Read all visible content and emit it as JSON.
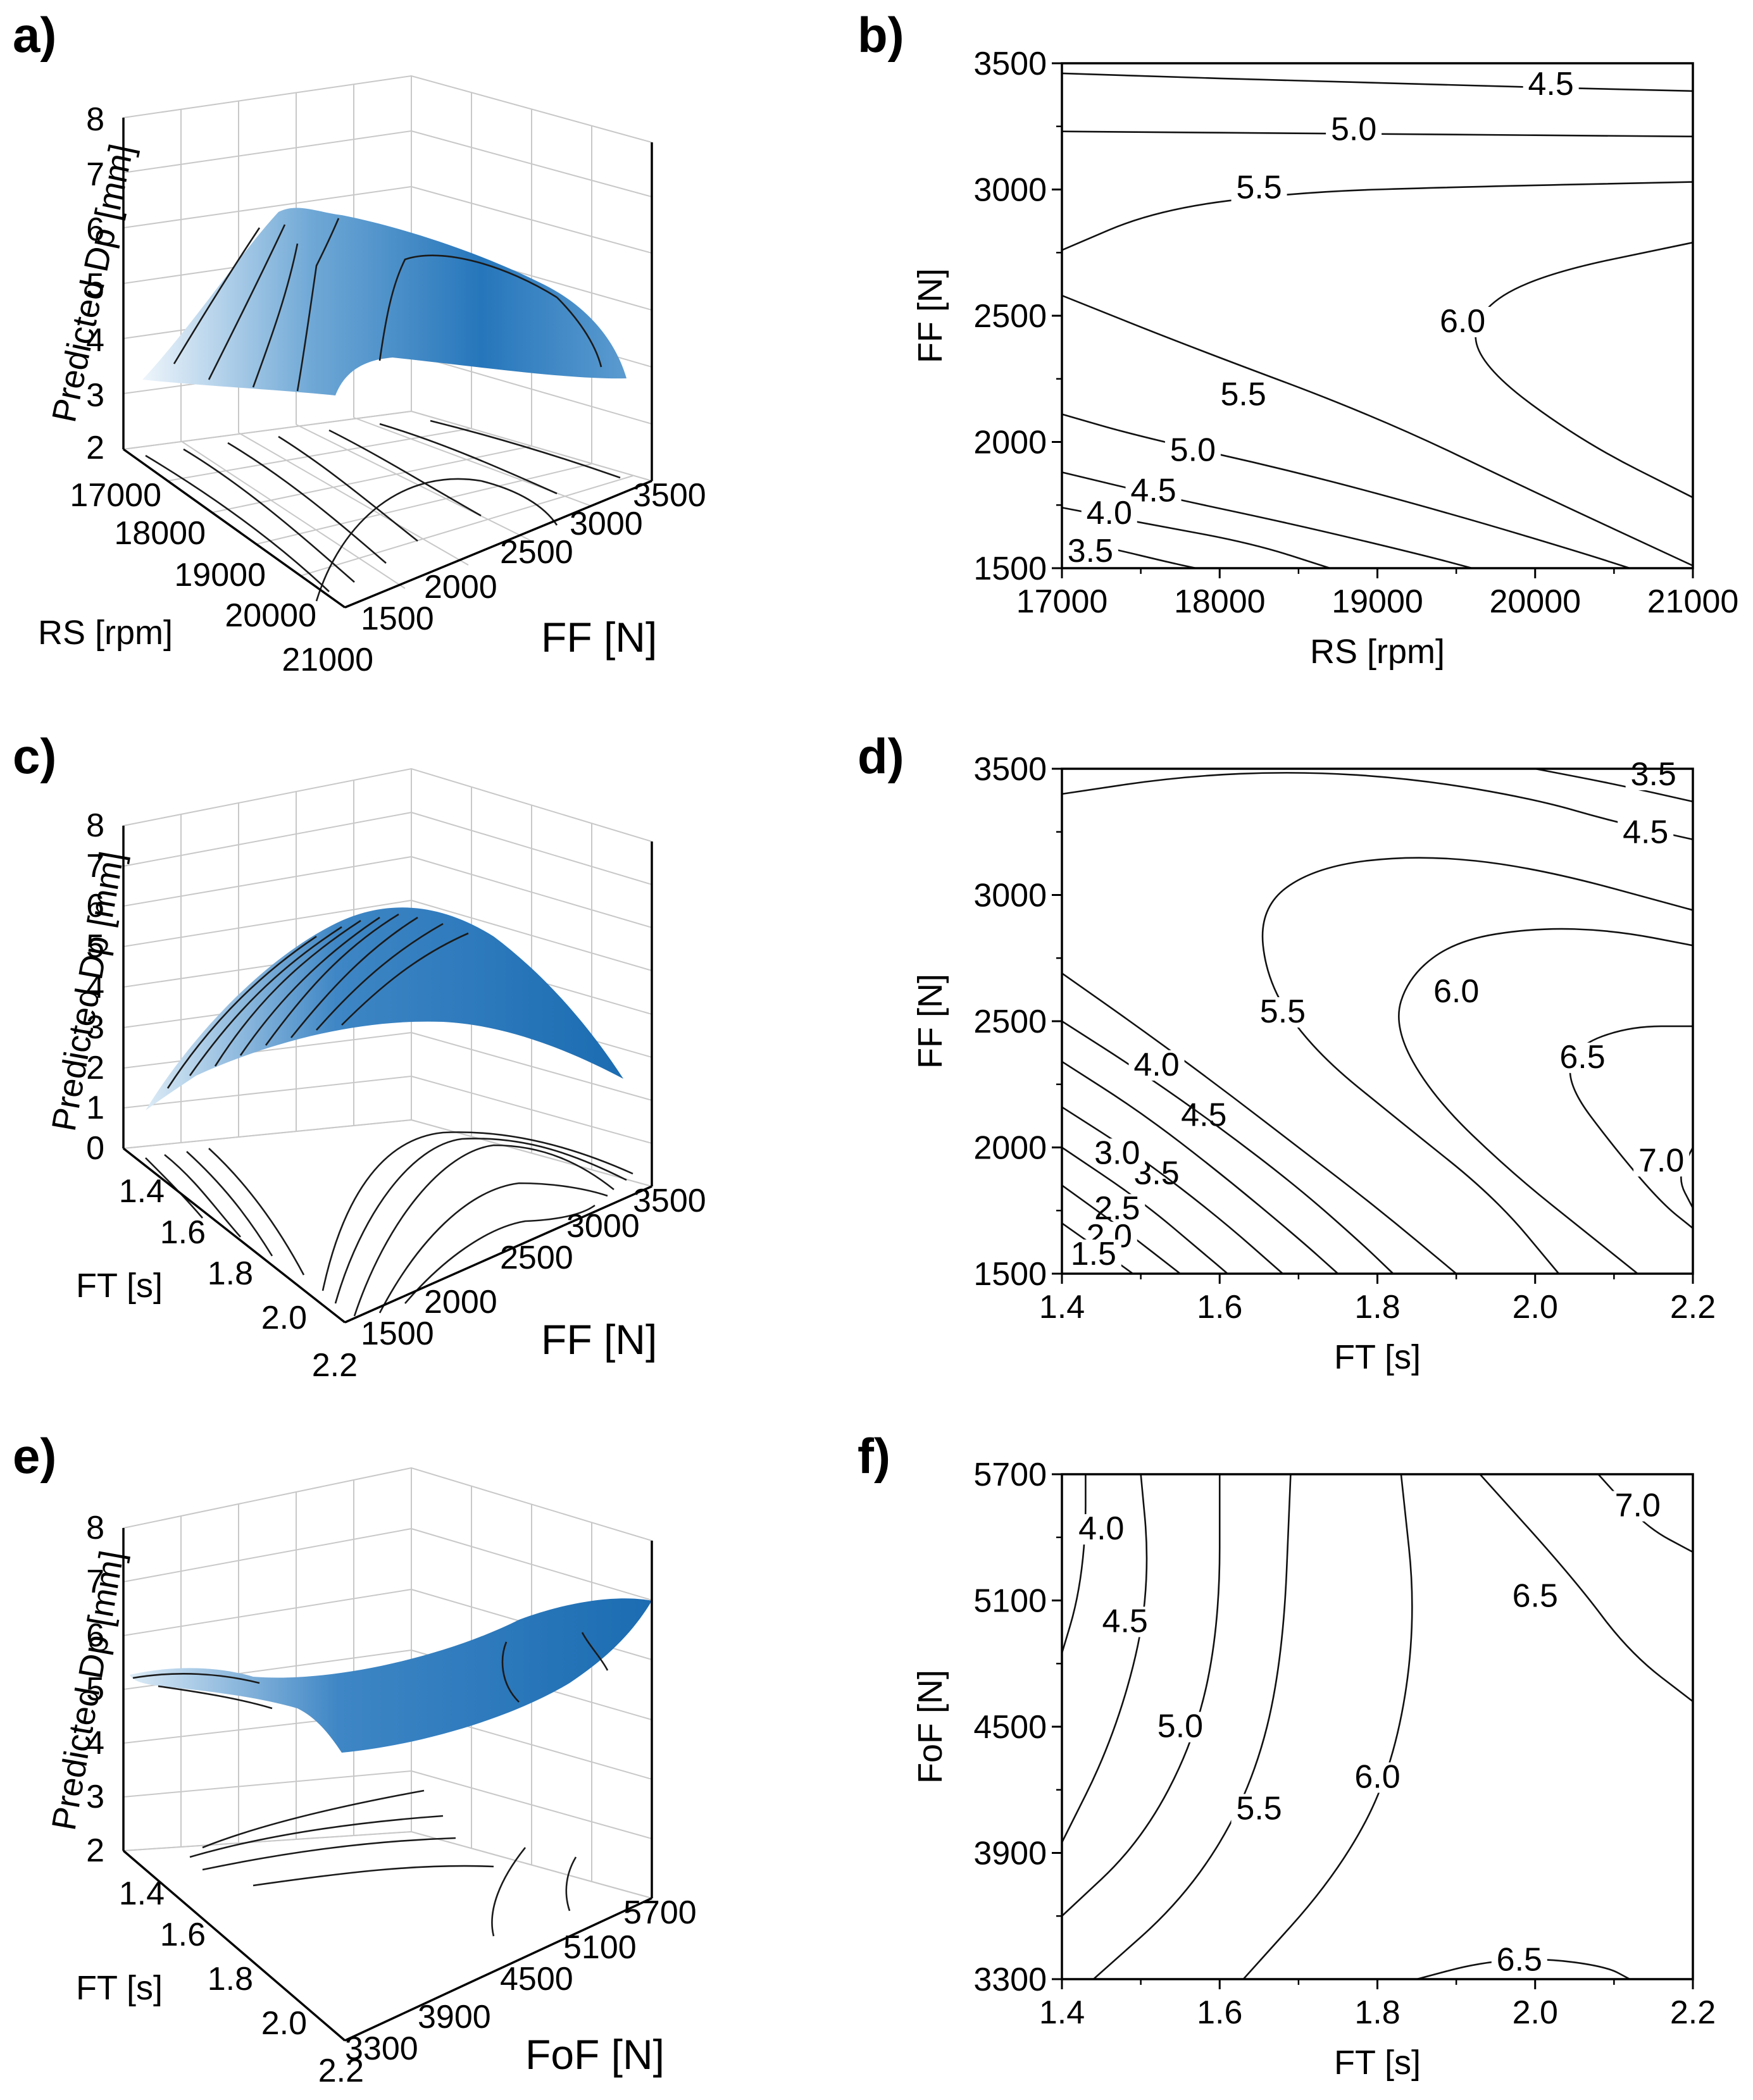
{
  "figure": {
    "panels": [
      "a)",
      "b)",
      "c)",
      "d)",
      "e)",
      "f)"
    ]
  },
  "colors": {
    "surface_light": "#e6f1fa",
    "surface_dark": "#1f72b6",
    "line": "#111111",
    "grid": "#c8c8c8"
  },
  "chart_data": [
    {
      "panel": "a)",
      "type": "surface3d",
      "zlabel": "Predicted Dp [mm]",
      "xlabel": "FF [N]",
      "ylabel": "RS [rpm]",
      "z_ticks": [
        "2",
        "3",
        "4",
        "5",
        "6",
        "7",
        "8"
      ],
      "x_ticks": [
        "1500",
        "2000",
        "2500",
        "3000",
        "3500"
      ],
      "y_ticks": [
        "17000",
        "18000",
        "19000",
        "20000",
        "21000"
      ],
      "zlim": [
        2,
        8
      ]
    },
    {
      "panel": "b)",
      "type": "contour",
      "xlabel": "RS [rpm]",
      "ylabel": "FF [N]",
      "x_ticks": [
        "17000",
        "18000",
        "19000",
        "20000",
        "21000"
      ],
      "y_ticks": [
        "1500",
        "2000",
        "2500",
        "3000",
        "3500"
      ],
      "xlim": [
        17000,
        21000
      ],
      "ylim": [
        1500,
        3500
      ],
      "contours": [
        {
          "level": "4.5",
          "points": [
            [
              17000,
              3460
            ],
            [
              19000,
              3420
            ],
            [
              21000,
              3390
            ]
          ],
          "label_at": [
            20100,
            3400
          ]
        },
        {
          "level": "5.0",
          "points": [
            [
              17000,
              3230
            ],
            [
              19000,
              3220
            ],
            [
              21000,
              3210
            ]
          ],
          "label_at": [
            18850,
            3220
          ]
        },
        {
          "level": "5.5",
          "points": [
            [
              17000,
              2760
            ],
            [
              17600,
              2920
            ],
            [
              18500,
              2990
            ],
            [
              19500,
              3010
            ],
            [
              21000,
              3030
            ]
          ],
          "label_at": [
            18250,
            2990
          ]
        },
        {
          "level": "6.0",
          "points": [
            [
              21000,
              2790
            ],
            [
              20000,
              2660
            ],
            [
              19600,
              2500
            ],
            [
              19650,
              2300
            ],
            [
              20300,
              2000
            ],
            [
              21000,
              1780
            ]
          ],
          "label_at": [
            19540,
            2460
          ]
        },
        {
          "level": "5.5",
          "points": [
            [
              17000,
              2580
            ],
            [
              17800,
              2380
            ],
            [
              19000,
              2100
            ],
            [
              20000,
              1800
            ],
            [
              21000,
              1510
            ]
          ],
          "label_at": [
            18150,
            2170
          ]
        },
        {
          "level": "5.0",
          "points": [
            [
              17000,
              2110
            ],
            [
              17500,
              2020
            ],
            [
              18500,
              1880
            ],
            [
              19500,
              1710
            ],
            [
              20300,
              1560
            ],
            [
              20600,
              1500
            ]
          ],
          "label_at": [
            17830,
            1950
          ]
        },
        {
          "level": "4.5",
          "points": [
            [
              17000,
              1880
            ],
            [
              17600,
              1790
            ],
            [
              18500,
              1670
            ],
            [
              19300,
              1550
            ],
            [
              19600,
              1500
            ]
          ],
          "label_at": [
            17580,
            1790
          ]
        },
        {
          "level": "4.0",
          "points": [
            [
              17000,
              1740
            ],
            [
              17500,
              1680
            ],
            [
              18200,
              1600
            ],
            [
              18700,
              1500
            ]
          ],
          "label_at": [
            17300,
            1700
          ]
        },
        {
          "level": "3.5",
          "points": [
            [
              17000,
              1620
            ],
            [
              17300,
              1580
            ],
            [
              17700,
              1520
            ],
            [
              17850,
              1500
            ]
          ],
          "label_at": [
            17180,
            1550
          ]
        }
      ]
    },
    {
      "panel": "c)",
      "type": "surface3d",
      "zlabel": "Predicted Dp [mm]",
      "xlabel": "FF [N]",
      "ylabel": "FT [s]",
      "z_ticks": [
        "0",
        "1",
        "2",
        "3",
        "4",
        "5",
        "6",
        "7",
        "8"
      ],
      "x_ticks": [
        "1500",
        "2000",
        "2500",
        "3000",
        "3500"
      ],
      "y_ticks": [
        "1.4",
        "1.6",
        "1.8",
        "2.0",
        "2.2"
      ],
      "zlim": [
        0,
        8
      ]
    },
    {
      "panel": "d)",
      "type": "contour",
      "xlabel": "FT [s]",
      "ylabel": "FF [N]",
      "x_ticks": [
        "1.4",
        "1.6",
        "1.8",
        "2.0",
        "2.2"
      ],
      "y_ticks": [
        "1500",
        "2000",
        "2500",
        "3000",
        "3500"
      ],
      "xlim": [
        1.4,
        2.2
      ],
      "ylim": [
        1500,
        3500
      ],
      "contours": [
        {
          "level": "3.5",
          "points": [
            [
              2.0,
              3500
            ],
            [
              2.1,
              3440
            ],
            [
              2.2,
              3370
            ]
          ],
          "label_at": [
            2.15,
            3460
          ]
        },
        {
          "level": "4.5",
          "points": [
            [
              1.4,
              3400
            ],
            [
              1.55,
              3470
            ],
            [
              1.7,
              3490
            ],
            [
              1.85,
              3460
            ],
            [
              2.0,
              3380
            ],
            [
              2.1,
              3290
            ],
            [
              2.2,
              3220
            ]
          ],
          "label_at": [
            2.14,
            3230
          ]
        },
        {
          "level": "5.5",
          "points": [
            [
              2.2,
              2940
            ],
            [
              2.0,
              3110
            ],
            [
              1.85,
              3160
            ],
            [
              1.72,
              3110
            ],
            [
              1.65,
              2950
            ],
            [
              1.66,
              2650
            ],
            [
              1.72,
              2380
            ],
            [
              1.83,
              2100
            ],
            [
              1.95,
              1800
            ],
            [
              2.03,
              1500
            ]
          ],
          "label_at": [
            1.68,
            2520
          ]
        },
        {
          "level": "6.0",
          "points": [
            [
              2.2,
              2800
            ],
            [
              2.1,
              2860
            ],
            [
              2.0,
              2870
            ],
            [
              1.9,
              2820
            ],
            [
              1.84,
              2680
            ],
            [
              1.82,
              2480
            ],
            [
              1.87,
              2200
            ],
            [
              1.97,
              1900
            ],
            [
              2.07,
              1650
            ],
            [
              2.13,
              1500
            ]
          ],
          "label_at": [
            1.9,
            2600
          ]
        },
        {
          "level": "6.5",
          "points": [
            [
              2.2,
              2480
            ],
            [
              2.12,
              2480
            ],
            [
              2.05,
              2400
            ],
            [
              2.04,
              2250
            ],
            [
              2.1,
              2000
            ],
            [
              2.16,
              1780
            ],
            [
              2.2,
              1680
            ]
          ],
          "label_at": [
            2.06,
            2340
          ]
        },
        {
          "level": "7.0",
          "points": [
            [
              2.2,
              2000
            ],
            [
              2.18,
              1880
            ],
            [
              2.2,
              1760
            ]
          ],
          "label_at": [
            2.16,
            1930
          ]
        },
        {
          "level": "4.5",
          "points": [
            [
              1.4,
              2690
            ],
            [
              1.5,
              2470
            ],
            [
              1.6,
              2240
            ],
            [
              1.7,
              2000
            ],
            [
              1.8,
              1760
            ],
            [
              1.9,
              1500
            ]
          ],
          "label_at": [
            1.58,
            2110
          ]
        },
        {
          "level": "4.0",
          "points": [
            [
              1.4,
              2500
            ],
            [
              1.5,
              2300
            ],
            [
              1.6,
              2080
            ],
            [
              1.7,
              1840
            ],
            [
              1.78,
              1620
            ],
            [
              1.82,
              1500
            ]
          ],
          "label_at": [
            1.52,
            2310
          ]
        },
        {
          "level": "3.5",
          "points": [
            [
              1.4,
              2340
            ],
            [
              1.5,
              2140
            ],
            [
              1.6,
              1900
            ],
            [
              1.7,
              1640
            ],
            [
              1.75,
              1500
            ]
          ],
          "label_at": [
            1.52,
            1880
          ]
        },
        {
          "level": "3.0",
          "points": [
            [
              1.4,
              2160
            ],
            [
              1.5,
              1960
            ],
            [
              1.6,
              1720
            ],
            [
              1.68,
              1500
            ]
          ],
          "label_at": [
            1.47,
            1960
          ]
        },
        {
          "level": "2.5",
          "points": [
            [
              1.4,
              2000
            ],
            [
              1.5,
              1790
            ],
            [
              1.58,
              1580
            ],
            [
              1.61,
              1500
            ]
          ],
          "label_at": [
            1.47,
            1740
          ]
        },
        {
          "level": "2.0",
          "points": [
            [
              1.4,
              1850
            ],
            [
              1.48,
              1670
            ],
            [
              1.55,
              1500
            ]
          ],
          "label_at": [
            1.46,
            1630
          ]
        },
        {
          "level": "1.5",
          "points": [
            [
              1.4,
              1700
            ],
            [
              1.45,
              1590
            ],
            [
              1.49,
              1500
            ]
          ],
          "label_at": [
            1.44,
            1560
          ]
        }
      ]
    },
    {
      "panel": "e)",
      "type": "surface3d",
      "zlabel": "Predicted Dp [mm]",
      "xlabel": "FoF [N]",
      "ylabel": "FT [s]",
      "z_ticks": [
        "2",
        "3",
        "4",
        "5",
        "6",
        "7",
        "8"
      ],
      "x_ticks": [
        "3300",
        "3900",
        "4500",
        "5100",
        "5700"
      ],
      "y_ticks": [
        "1.4",
        "1.6",
        "1.8",
        "2.0",
        "2.2"
      ],
      "zlim": [
        2,
        8
      ]
    },
    {
      "panel": "f)",
      "type": "contour",
      "xlabel": "FT [s]",
      "ylabel": "FoF [N]",
      "x_ticks": [
        "1.4",
        "1.6",
        "1.8",
        "2.0",
        "2.2"
      ],
      "y_ticks": [
        "3300",
        "3900",
        "4500",
        "5100",
        "5700"
      ],
      "xlim": [
        1.4,
        2.2
      ],
      "ylim": [
        3300,
        5700
      ],
      "contours": [
        {
          "level": "4.0",
          "points": [
            [
              1.4,
              4850
            ],
            [
              1.42,
              5100
            ],
            [
              1.43,
              5400
            ],
            [
              1.43,
              5700
            ]
          ],
          "label_at": [
            1.45,
            5420
          ]
        },
        {
          "level": "4.5",
          "points": [
            [
              1.4,
              3950
            ],
            [
              1.46,
              4400
            ],
            [
              1.5,
              4900
            ],
            [
              1.51,
              5300
            ],
            [
              1.5,
              5700
            ]
          ],
          "label_at": [
            1.48,
            4980
          ]
        },
        {
          "level": "5.0",
          "points": [
            [
              1.4,
              3600
            ],
            [
              1.5,
              3950
            ],
            [
              1.57,
              4450
            ],
            [
              1.6,
              5000
            ],
            [
              1.6,
              5700
            ]
          ],
          "label_at": [
            1.55,
            4480
          ]
        },
        {
          "level": "5.5",
          "points": [
            [
              1.44,
              3300
            ],
            [
              1.56,
              3700
            ],
            [
              1.64,
              4200
            ],
            [
              1.68,
              4800
            ],
            [
              1.69,
              5700
            ]
          ],
          "label_at": [
            1.65,
            4090
          ]
        },
        {
          "level": "6.0",
          "points": [
            [
              1.63,
              3300
            ],
            [
              1.75,
              3800
            ],
            [
              1.82,
              4300
            ],
            [
              1.85,
              5000
            ],
            [
              1.83,
              5700
            ]
          ],
          "label_at": [
            1.8,
            4240
          ]
        },
        {
          "level": "6.5",
          "points": [
            [
              1.93,
              5700
            ],
            [
              2.05,
              5200
            ],
            [
              2.12,
              4850
            ],
            [
              2.2,
              4620
            ]
          ],
          "label_at": [
            2.0,
            5100
          ]
        },
        {
          "level": "7.0",
          "points": [
            [
              2.08,
              5700
            ],
            [
              2.14,
              5450
            ],
            [
              2.2,
              5330
            ]
          ],
          "label_at": [
            2.13,
            5530
          ]
        },
        {
          "level": "6.5",
          "points": [
            [
              1.85,
              3300
            ],
            [
              1.93,
              3380
            ],
            [
              2.01,
              3400
            ],
            [
              2.09,
              3360
            ],
            [
              2.12,
              3300
            ]
          ],
          "label_at": [
            1.98,
            3370
          ]
        }
      ]
    }
  ]
}
